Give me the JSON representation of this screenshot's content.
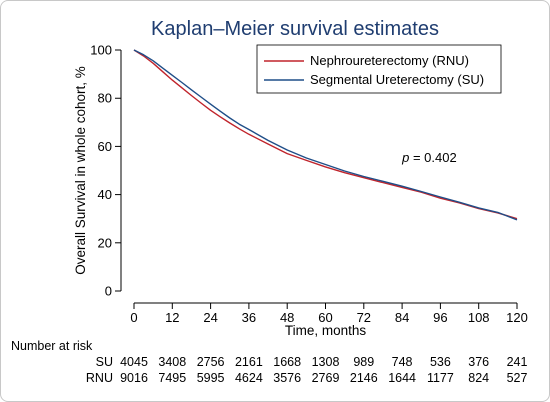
{
  "chart_data": {
    "type": "line",
    "title": "Kaplan–Meier survival estimates",
    "xlabel": "Time, months",
    "ylabel": "Overall Survival in whole cohort, %",
    "xlim": [
      0,
      120
    ],
    "ylim": [
      0,
      100
    ],
    "x_ticks": [
      0,
      12,
      24,
      36,
      48,
      60,
      72,
      84,
      96,
      108,
      120
    ],
    "y_ticks": [
      0,
      20,
      40,
      60,
      80,
      100
    ],
    "grid": false,
    "legend_position": "top-right",
    "series": [
      {
        "name": "Nephroureterectomy (RNU)",
        "color": "#c0242c",
        "x": [
          0,
          3,
          6,
          9,
          12,
          15,
          18,
          21,
          24,
          27,
          30,
          33,
          36,
          42,
          48,
          54,
          60,
          66,
          72,
          78,
          84,
          90,
          96,
          102,
          108,
          114,
          120
        ],
        "y": [
          100,
          97.5,
          94.5,
          91,
          87.5,
          84.3,
          81.1,
          78,
          75,
          72.3,
          69.7,
          67.3,
          65,
          61,
          57,
          54.2,
          51.5,
          49.1,
          47,
          45,
          43,
          41,
          38.5,
          36.5,
          34.2,
          32.4,
          30
        ]
      },
      {
        "name": "Segmental Ureterectomy (SU)",
        "color": "#1f4e88",
        "x": [
          0,
          3,
          6,
          9,
          12,
          15,
          18,
          21,
          24,
          27,
          30,
          33,
          36,
          42,
          48,
          54,
          60,
          66,
          72,
          78,
          84,
          90,
          96,
          102,
          108,
          114,
          120
        ],
        "y": [
          100,
          98,
          95.5,
          92.5,
          89.5,
          86.5,
          83.5,
          80.5,
          77.5,
          74.6,
          71.8,
          69.2,
          67,
          62.5,
          58.5,
          55.2,
          52.5,
          49.8,
          47.5,
          45.5,
          43.5,
          41.3,
          39,
          36.8,
          34.5,
          32.6,
          29.5
        ]
      }
    ],
    "annotation": {
      "prefix": "p",
      "text": " = 0.402",
      "x": 84,
      "y": 53.5
    }
  },
  "risk_table": {
    "heading": "Number at risk",
    "rows": [
      {
        "label": "SU",
        "counts": [
          "4045",
          "3408",
          "2756",
          "2161",
          "1668",
          "1308",
          "989",
          "748",
          "536",
          "376",
          "241"
        ]
      },
      {
        "label": "RNU",
        "counts": [
          "9016",
          "7495",
          "5995",
          "4624",
          "3576",
          "2769",
          "2146",
          "1644",
          "1177",
          "824",
          "527"
        ]
      }
    ]
  }
}
